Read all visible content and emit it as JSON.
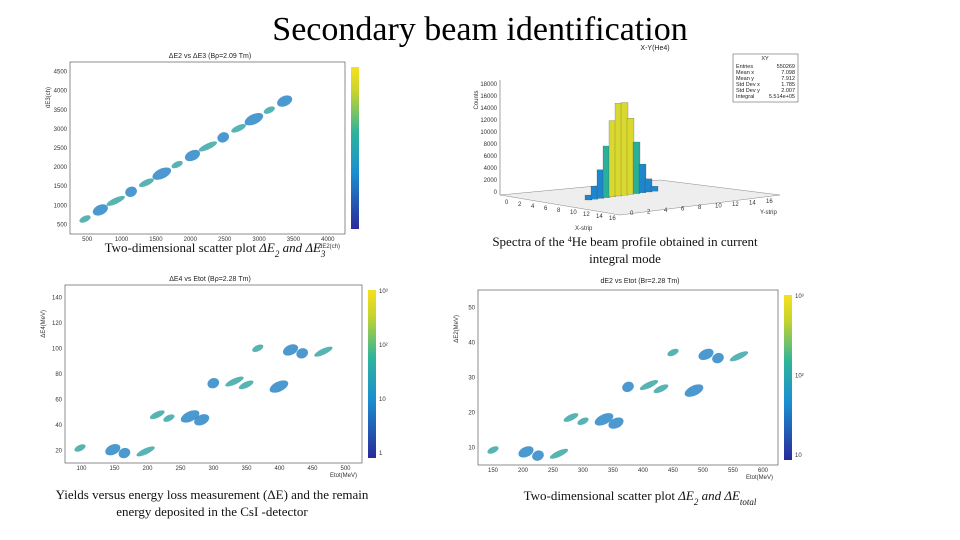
{
  "title": "Secondary beam identification",
  "panels": [
    {
      "plot_title": "ΔE2 vs ΔE3 (Bρ=2.09 Tm)",
      "y_label": "dE3(ch)",
      "x_label": "dE2(ch)",
      "xticks": [
        "500",
        "1000",
        "1500",
        "2000",
        "2500",
        "3000",
        "3500",
        "4000"
      ],
      "yticks": [
        "500",
        "1000",
        "1500",
        "2000",
        "2500",
        "3000",
        "3500",
        "4000",
        "4500"
      ],
      "caption": [
        [
          "Two-dimensional scatter plot ",
          "ΔE",
          "2",
          " and ",
          "ΔE",
          "3"
        ]
      ]
    },
    {
      "plot_title": "X-Y(He4)",
      "y_label": "Counts",
      "x_label": "X-strip",
      "x2_label": "Y-strip",
      "xticks": [
        "0",
        "2",
        "4",
        "6",
        "8",
        "10",
        "12",
        "14",
        "16"
      ],
      "yticks": [
        "0",
        "2000",
        "4000",
        "6000",
        "8000",
        "10000",
        "12000",
        "14000",
        "16000",
        "18000"
      ],
      "stats": {
        "name": "XY",
        "rows": [
          [
            "Entries",
            "550269"
          ],
          [
            "Mean x",
            "7.098"
          ],
          [
            "Mean y",
            "7.912"
          ],
          [
            "Std Dev x",
            "1.785"
          ],
          [
            "Std Dev y",
            "2.007"
          ],
          [
            "Integral",
            "5.514e+05"
          ]
        ]
      },
      "caption": [
        [
          "Spectra of the ",
          "4",
          "He beam profile obtained in current"
        ],
        [
          "integral mode"
        ]
      ]
    },
    {
      "plot_title": "ΔE4 vs Etot (Bρ=2.28 Tm)",
      "y_label": "ΔE4(MeV)",
      "x_label": "Etot(MeV)",
      "xticks": [
        "100",
        "150",
        "200",
        "250",
        "300",
        "350",
        "400",
        "450",
        "500"
      ],
      "yticks": [
        "20",
        "40",
        "60",
        "80",
        "100",
        "120",
        "140"
      ],
      "zticks": [
        "1",
        "10",
        "10²",
        "10³"
      ],
      "caption": [
        [
          "Yields versus energy loss measurement (ΔE) and the remain"
        ],
        [
          "energy deposited in the CsI -detector"
        ]
      ]
    },
    {
      "plot_title": "dE2 vs Etot (Br=2.28 Tm)",
      "y_label": "ΔE2(MeV)",
      "x_label": "Etot(MeV)",
      "xticks": [
        "150",
        "200",
        "250",
        "300",
        "350",
        "400",
        "450",
        "500",
        "550",
        "600"
      ],
      "yticks": [
        "10",
        "20",
        "30",
        "40",
        "50"
      ],
      "zticks": [
        "10",
        "10²",
        "10³"
      ],
      "caption": [
        [
          "Two-dimensional scatter plot ",
          "ΔE",
          "2",
          " and ",
          "ΔE",
          "total"
        ]
      ]
    }
  ]
}
